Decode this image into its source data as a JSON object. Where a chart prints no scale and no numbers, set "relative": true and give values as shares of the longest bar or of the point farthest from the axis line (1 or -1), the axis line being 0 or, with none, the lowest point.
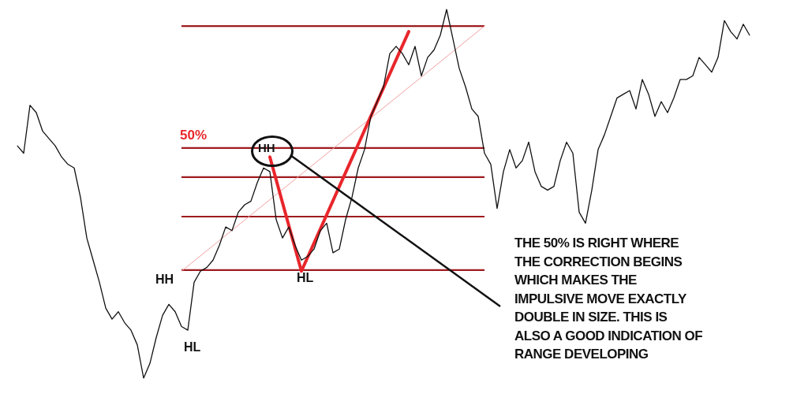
{
  "chart_data": {
    "type": "line",
    "relative": true,
    "marker": "none",
    "legend": false,
    "categories": [
      null,
      null,
      null,
      null,
      null,
      null,
      null,
      null,
      null,
      null,
      null,
      null,
      null,
      null,
      null,
      null,
      null,
      null,
      null,
      null,
      null,
      null,
      null,
      null,
      null,
      null,
      null,
      null,
      null,
      null,
      null,
      null,
      null,
      null,
      null,
      null,
      null,
      null,
      null,
      null,
      null,
      null,
      null,
      null,
      null,
      null,
      null,
      null,
      null,
      null,
      null,
      null,
      null,
      null,
      null,
      null,
      null,
      null,
      null,
      null,
      null,
      null,
      null,
      null,
      null,
      null,
      null,
      null,
      null,
      null,
      null,
      null,
      null,
      null,
      null,
      null,
      null,
      null,
      null,
      null,
      null,
      null,
      null,
      null,
      null,
      null,
      null,
      null,
      null,
      null,
      null,
      null,
      null,
      null,
      null,
      null,
      null,
      null,
      null,
      null,
      null,
      null,
      null,
      null,
      null,
      null,
      null,
      null,
      null,
      null,
      null,
      null,
      null,
      null,
      null,
      null,
      null
    ],
    "series": [
      {
        "color": "#111111",
        "values": [
          0.63,
          0.61,
          0.74,
          0.72,
          0.67,
          0.65,
          0.63,
          0.6,
          0.58,
          0.57,
          0.49,
          0.38,
          0.32,
          0.26,
          0.19,
          0.16,
          0.18,
          0.15,
          0.13,
          0.09,
          0,
          0.04,
          0.11,
          0.17,
          0.2,
          0.18,
          0.14,
          0.13,
          0.26,
          0.29,
          0.3,
          0.32,
          0.36,
          0.41,
          0.4,
          0.45,
          0.47,
          0.48,
          0.53,
          0.57,
          0.56,
          0.43,
          0.38,
          0.41,
          0.36,
          0.32,
          0.33,
          0.35,
          0.4,
          0.42,
          0.34,
          0.35,
          0.43,
          0.49,
          0.57,
          0.62,
          0.71,
          0.75,
          0.79,
          0.88,
          0.9,
          0.88,
          0.85,
          0.9,
          0.82,
          0.87,
          0.89,
          0.93,
          1,
          0.92,
          0.84,
          0.79,
          0.73,
          0.71,
          0.61,
          0.58,
          0.46,
          0.56,
          0.62,
          0.57,
          0.59,
          0.64,
          0.56,
          0.52,
          0.51,
          0.52,
          0.59,
          0.64,
          0.61,
          0.45,
          0.42,
          0.51,
          0.62,
          0.66,
          0.71,
          0.76,
          0.77,
          0.78,
          0.73,
          0.81,
          0.77,
          0.71,
          0.75,
          0.72,
          0.76,
          0.81,
          0.81,
          0.82,
          0.87,
          0.85,
          0.83,
          0.87,
          0.97,
          0.94,
          0.92,
          0.96,
          0.93
        ]
      },
      {
        "color": "#e8262b",
        "values": [
          null,
          null,
          null,
          null,
          null,
          null,
          null,
          null,
          null,
          null,
          null,
          null,
          null,
          null,
          null,
          null,
          null,
          null,
          null,
          null,
          null,
          null,
          null,
          null,
          null,
          null,
          null,
          null,
          null,
          null,
          null,
          null,
          null,
          null,
          null,
          null,
          null,
          null,
          null,
          null,
          0.6,
          null,
          null,
          null,
          null,
          0.29,
          null,
          null,
          null,
          null,
          null,
          null,
          null,
          null,
          null,
          null,
          null,
          null,
          null,
          null,
          null,
          null,
          0.94,
          null,
          null,
          null,
          null,
          null,
          null,
          null,
          null,
          null,
          null,
          null,
          null,
          null,
          null,
          null,
          null,
          null,
          null,
          null,
          null,
          null,
          null,
          null,
          null,
          null,
          null,
          null,
          null,
          null,
          null,
          null,
          null,
          null,
          null,
          null,
          null,
          null,
          null,
          null,
          null,
          null,
          null,
          null,
          null,
          null,
          null,
          null,
          null,
          null,
          null,
          null,
          null,
          null,
          null
        ]
      },
      {
        "color": "#f2a0a0",
        "values": [
          null,
          null,
          null,
          null,
          null,
          null,
          null,
          null,
          null,
          null,
          null,
          null,
          null,
          null,
          null,
          null,
          null,
          null,
          null,
          null,
          null,
          null,
          null,
          null,
          null,
          null,
          0.29,
          null,
          null,
          null,
          null,
          null,
          null,
          null,
          null,
          null,
          null,
          null,
          null,
          null,
          null,
          null,
          null,
          null,
          null,
          null,
          null,
          null,
          null,
          null,
          null,
          null,
          null,
          null,
          null,
          null,
          null,
          null,
          null,
          null,
          null,
          null,
          null,
          null,
          null,
          null,
          null,
          null,
          null,
          null,
          null,
          null,
          null,
          null,
          0.955,
          null,
          null,
          null,
          null,
          null,
          null,
          null,
          null,
          null,
          null,
          null,
          null,
          null,
          null,
          null,
          null,
          null,
          null,
          null,
          null,
          null,
          null,
          null,
          null,
          null,
          null,
          null,
          null,
          null,
          null,
          null,
          null,
          null,
          null,
          null,
          null,
          null,
          null,
          null,
          null,
          null,
          null
        ]
      }
    ],
    "ref_lines": [
      {
        "axis": "y",
        "value": 0.955,
        "color": "#9e1b1f"
      },
      {
        "axis": "y",
        "value": 0.624,
        "color": "#9e1b1f"
      },
      {
        "axis": "y",
        "value": 0.545,
        "color": "#9e1b1f"
      },
      {
        "axis": "y",
        "value": 0.438,
        "color": "#9e1b1f"
      },
      {
        "axis": "y",
        "value": 0.293,
        "color": "#9e1b1f"
      }
    ],
    "annotations": [
      "50%",
      "HH",
      "HL",
      "HH",
      "HL",
      "THE 50% IS RIGHT WHERE\nTHE CORRECTION BEGINS\nWHICH MAKES THE\nIMPULSIVE MOVE EXACTLY\nDOUBLE IN SIZE. THIS IS\nALSO A GOOD INDICATION OF\nRANGE DEVELOPING"
    ]
  }
}
